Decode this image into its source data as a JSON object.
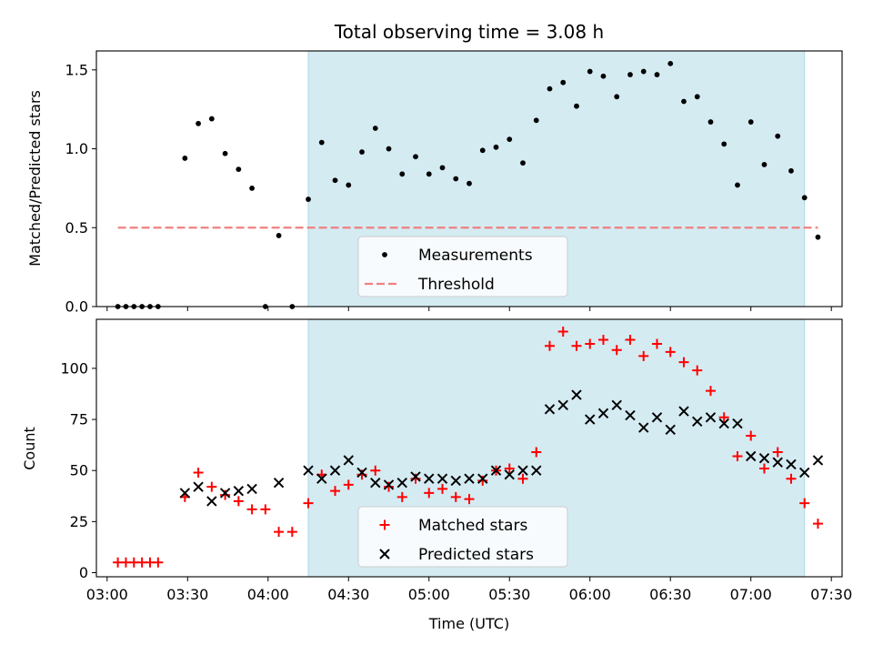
{
  "chart_data": [
    {
      "type": "scatter",
      "title": "Total observing time = 3.08 h",
      "xlabel": "",
      "ylabel": "Matched/Predicted stars",
      "xlim": [
        "02:56",
        "07:34"
      ],
      "ylim": [
        0,
        1.62
      ],
      "yticks": [
        "0.0",
        "0.5",
        "1.0",
        "1.5"
      ],
      "shaded_span": [
        "04:15",
        "07:20"
      ],
      "threshold": {
        "name": "Threshold",
        "y": 0.5,
        "x": [
          "03:04",
          "07:25"
        ],
        "color": "#f08080"
      },
      "legend": {
        "position": "lower center",
        "entries": [
          "Measurements",
          "Threshold"
        ]
      },
      "series": [
        {
          "name": "Measurements",
          "marker": "dot",
          "color": "#000000",
          "x": [
            "03:04",
            "03:07",
            "03:10",
            "03:13",
            "03:16",
            "03:19",
            "03:29",
            "03:34",
            "03:39",
            "03:44",
            "03:49",
            "03:54",
            "03:59",
            "04:04",
            "04:09",
            "04:15",
            "04:20",
            "04:25",
            "04:30",
            "04:35",
            "04:40",
            "04:45",
            "04:50",
            "04:55",
            "05:00",
            "05:05",
            "05:10",
            "05:15",
            "05:20",
            "05:25",
            "05:30",
            "05:35",
            "05:40",
            "05:45",
            "05:50",
            "05:55",
            "06:00",
            "06:05",
            "06:10",
            "06:15",
            "06:20",
            "06:25",
            "06:30",
            "06:35",
            "06:40",
            "06:45",
            "06:50",
            "06:55",
            "07:00",
            "07:05",
            "07:10",
            "07:15",
            "07:20",
            "07:25"
          ],
          "y": [
            0.0,
            0.0,
            0.0,
            0.0,
            0.0,
            0.0,
            0.94,
            1.16,
            1.19,
            0.97,
            0.87,
            0.75,
            0.0,
            0.45,
            0.0,
            0.68,
            1.04,
            0.8,
            0.77,
            0.98,
            1.13,
            1.0,
            0.84,
            0.95,
            0.84,
            0.88,
            0.81,
            0.78,
            0.99,
            1.01,
            1.06,
            0.91,
            1.18,
            1.38,
            1.42,
            1.27,
            1.49,
            1.46,
            1.33,
            1.47,
            1.49,
            1.47,
            1.54,
            1.3,
            1.33,
            1.17,
            1.03,
            0.77,
            1.17,
            0.9,
            1.08,
            0.86,
            0.69,
            0.44
          ]
        }
      ]
    },
    {
      "type": "scatter",
      "title": "",
      "xlabel": "Time (UTC)",
      "ylabel": "Count",
      "xlim": [
        "02:56",
        "07:34"
      ],
      "ylim": [
        -2,
        124
      ],
      "yticks": [
        "0",
        "25",
        "50",
        "75",
        "100"
      ],
      "xticks": [
        "03:00",
        "03:30",
        "04:00",
        "04:30",
        "05:00",
        "05:30",
        "06:00",
        "06:30",
        "07:00",
        "07:30"
      ],
      "shaded_span": [
        "04:15",
        "07:20"
      ],
      "legend": {
        "position": "lower center",
        "entries": [
          "Matched stars",
          "Predicted stars"
        ]
      },
      "series": [
        {
          "name": "Matched stars",
          "marker": "plus",
          "color": "#ff0000",
          "x": [
            "03:04",
            "03:07",
            "03:10",
            "03:13",
            "03:16",
            "03:19",
            "03:29",
            "03:34",
            "03:39",
            "03:44",
            "03:49",
            "03:54",
            "03:59",
            "04:04",
            "04:09",
            "04:15",
            "04:20",
            "04:25",
            "04:30",
            "04:35",
            "04:40",
            "04:45",
            "04:50",
            "04:55",
            "05:00",
            "05:05",
            "05:10",
            "05:15",
            "05:20",
            "05:25",
            "05:30",
            "05:35",
            "05:40",
            "05:45",
            "05:50",
            "05:55",
            "06:00",
            "06:05",
            "06:10",
            "06:15",
            "06:20",
            "06:25",
            "06:30",
            "06:35",
            "06:40",
            "06:45",
            "06:50",
            "06:55",
            "07:00",
            "07:05",
            "07:10",
            "07:15",
            "07:20",
            "07:25"
          ],
          "y": [
            5,
            5,
            5,
            5,
            5,
            5,
            37,
            49,
            42,
            38,
            35,
            31,
            31,
            20,
            20,
            34,
            48,
            40,
            43,
            48,
            50,
            42,
            37,
            46,
            39,
            41,
            37,
            36,
            45,
            50,
            51,
            46,
            59,
            111,
            118,
            111,
            112,
            114,
            109,
            114,
            106,
            112,
            108,
            103,
            99,
            89,
            76,
            57,
            67,
            51,
            59,
            46,
            34,
            24
          ]
        },
        {
          "name": "Predicted stars",
          "marker": "x",
          "color": "#000000",
          "x": [
            "03:29",
            "03:34",
            "03:39",
            "03:44",
            "03:49",
            "03:54",
            "04:04",
            "04:15",
            "04:20",
            "04:25",
            "04:30",
            "04:35",
            "04:40",
            "04:45",
            "04:50",
            "04:55",
            "05:00",
            "05:05",
            "05:10",
            "05:15",
            "05:20",
            "05:25",
            "05:30",
            "05:35",
            "05:40",
            "05:45",
            "05:50",
            "05:55",
            "06:00",
            "06:05",
            "06:10",
            "06:15",
            "06:20",
            "06:25",
            "06:30",
            "06:35",
            "06:40",
            "06:45",
            "06:50",
            "06:55",
            "07:00",
            "07:05",
            "07:10",
            "07:15",
            "07:20",
            "07:25"
          ],
          "y": [
            39,
            42,
            35,
            39,
            40,
            41,
            44,
            50,
            46,
            50,
            55,
            49,
            44,
            43,
            44,
            47,
            46,
            46,
            45,
            46,
            46,
            50,
            48,
            50,
            50,
            80,
            82,
            87,
            75,
            78,
            82,
            77,
            71,
            76,
            70,
            79,
            74,
            76,
            73,
            73,
            57,
            56,
            54,
            53,
            49,
            55
          ]
        }
      ]
    }
  ]
}
